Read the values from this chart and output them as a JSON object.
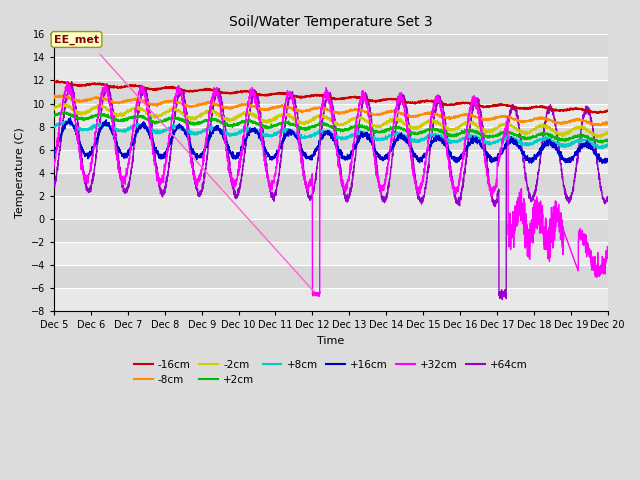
{
  "title": "Soil/Water Temperature Set 3",
  "xlabel": "Time",
  "ylabel": "Temperature (C)",
  "ylim": [
    -8,
    16
  ],
  "yticks": [
    -8,
    -6,
    -4,
    -2,
    0,
    2,
    4,
    6,
    8,
    10,
    12,
    14,
    16
  ],
  "xtick_labels": [
    "Dec 5",
    "Dec 6",
    "Dec 7",
    "Dec 8",
    "Dec 9",
    "Dec 10",
    "Dec 11",
    "Dec 12",
    "Dec 13",
    "Dec 14",
    "Dec 15",
    "Dec 16",
    "Dec 17",
    "Dec 18",
    "Dec 19",
    "Dec 20"
  ],
  "annotation_label": "EE_met",
  "line_colors": {
    "-16cm": "#cc0000",
    "-8cm": "#ff8c00",
    "-2cm": "#cccc00",
    "+2cm": "#00bb00",
    "+8cm": "#00cccc",
    "+16cm": "#0000cc",
    "+32cm": "#ff00ff",
    "+64cm": "#9900cc"
  },
  "figsize": [
    6.4,
    4.8
  ],
  "dpi": 100
}
